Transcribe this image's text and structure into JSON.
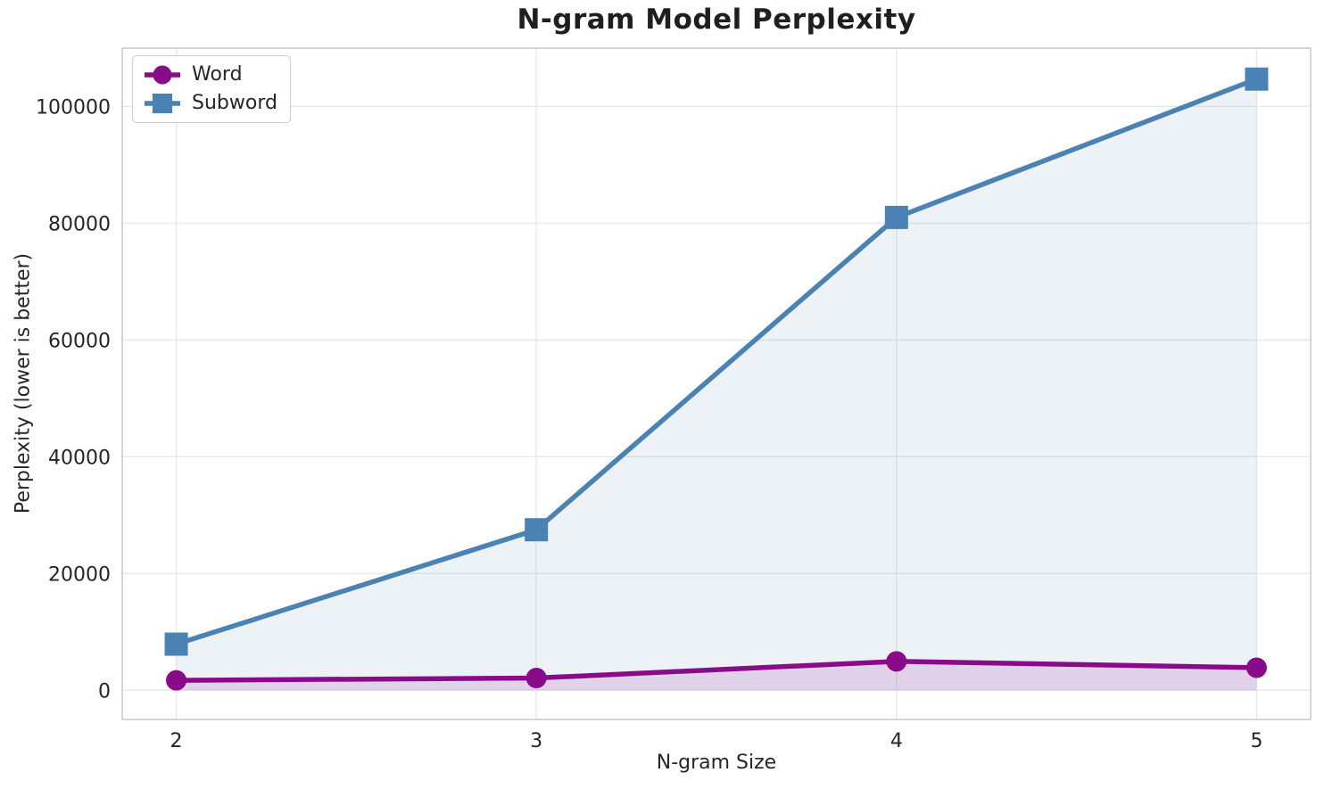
{
  "chart_data": {
    "type": "line",
    "title": "N-gram Model Perplexity",
    "xlabel": "N-gram Size",
    "ylabel": "Perplexity (lower is better)",
    "x": [
      2,
      3,
      4,
      5
    ],
    "xticklabels": [
      "2",
      "3",
      "4",
      "5"
    ],
    "yticks": [
      0,
      20000,
      40000,
      60000,
      80000,
      100000
    ],
    "yticklabels": [
      "0",
      "20000",
      "40000",
      "60000",
      "80000",
      "100000"
    ],
    "xlim": [
      1.85,
      5.15
    ],
    "ylim": [
      -5000,
      110000
    ],
    "grid": true,
    "area_fill_to": 0,
    "legend_position": "upper left",
    "series": [
      {
        "name": "Word",
        "marker": "circle",
        "color": "#8a0b8a",
        "fill_opacity": 0.13,
        "values": [
          1700,
          2100,
          4950,
          3860
        ]
      },
      {
        "name": "Subword",
        "marker": "square",
        "color": "#4a82b4",
        "fill_opacity": 0.1,
        "values": [
          7900,
          27500,
          81000,
          104700
        ]
      }
    ]
  },
  "figure": {
    "background": "#ffffff",
    "grid_color": "#e8e8e8",
    "spine_color": "#cccccc",
    "tick_color": "#262626",
    "title_color": "#1f1f1f"
  }
}
